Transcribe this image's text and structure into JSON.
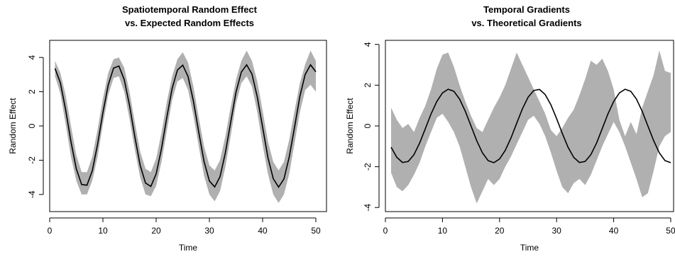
{
  "chart_data": [
    {
      "type": "line",
      "title_lines": [
        "Spatiotemporal Random Effect",
        "vs. Expected Random Effects"
      ],
      "xlabel": "Time",
      "ylabel": "Random Effect",
      "xlim": [
        0,
        52
      ],
      "ylim": [
        -5,
        5
      ],
      "xticks": [
        0,
        10,
        20,
        30,
        40,
        50
      ],
      "yticks": [
        -4,
        -2,
        0,
        2,
        4
      ],
      "series": [
        {
          "role": "expected",
          "color": "#000000",
          "x": [
            1,
            2,
            3,
            4,
            5,
            6,
            7,
            8,
            9,
            10,
            11,
            12,
            13,
            14,
            15,
            16,
            17,
            18,
            19,
            20,
            21,
            22,
            23,
            24,
            25,
            26,
            27,
            28,
            29,
            30,
            31,
            32,
            33,
            34,
            35,
            36,
            37,
            38,
            39,
            40,
            41,
            42,
            43,
            44,
            45,
            46,
            47,
            48,
            49,
            50
          ],
          "y": [
            3.36,
            2.53,
            0.94,
            -0.92,
            -2.5,
            -3.42,
            -3.46,
            -2.62,
            -1.07,
            0.78,
            2.4,
            3.38,
            3.5,
            2.71,
            1.2,
            -0.64,
            -2.3,
            -3.33,
            -3.53,
            -2.8,
            -1.33,
            0.5,
            2.19,
            3.27,
            3.55,
            2.88,
            1.45,
            -0.36,
            -2.08,
            -3.21,
            -3.56,
            -2.96,
            -1.57,
            0.22,
            1.97,
            3.15,
            3.57,
            3.03,
            1.69,
            -0.07,
            -1.85,
            -3.08,
            -3.57,
            -3.1,
            -1.81,
            -0.07,
            1.73,
            3.01,
            3.57,
            3.16
          ]
        },
        {
          "role": "credible-band",
          "color": "#b0b0b0",
          "x": [
            1,
            2,
            3,
            4,
            5,
            6,
            7,
            8,
            9,
            10,
            11,
            12,
            13,
            14,
            15,
            16,
            17,
            18,
            19,
            20,
            21,
            22,
            23,
            24,
            25,
            26,
            27,
            28,
            29,
            30,
            31,
            32,
            33,
            34,
            35,
            36,
            37,
            38,
            39,
            40,
            41,
            42,
            43,
            44,
            45,
            46,
            47,
            48,
            49,
            50
          ],
          "lower": [
            2.9,
            1.9,
            0.1,
            -1.8,
            -3.2,
            -4.0,
            -4.0,
            -3.2,
            -1.8,
            0.1,
            1.8,
            2.8,
            2.9,
            2.0,
            0.4,
            -1.4,
            -3.0,
            -4.0,
            -4.1,
            -3.5,
            -2.1,
            -0.3,
            1.5,
            2.6,
            2.8,
            2.1,
            0.6,
            -1.2,
            -2.9,
            -4.0,
            -4.4,
            -3.8,
            -2.4,
            -0.6,
            1.3,
            2.5,
            2.9,
            2.3,
            0.8,
            -1.1,
            -2.8,
            -4.0,
            -4.5,
            -4.0,
            -2.8,
            -1.0,
            0.8,
            2.1,
            2.4,
            2.0
          ],
          "upper": [
            3.8,
            3.1,
            1.8,
            0.0,
            -1.7,
            -2.7,
            -2.7,
            -1.8,
            -0.2,
            1.6,
            3.1,
            3.9,
            4.0,
            3.4,
            2.0,
            0.2,
            -1.5,
            -2.5,
            -2.7,
            -1.9,
            -0.4,
            1.4,
            2.9,
            3.9,
            4.3,
            3.7,
            2.3,
            0.5,
            -1.2,
            -2.3,
            -2.6,
            -2.0,
            -0.6,
            1.1,
            2.7,
            3.8,
            4.4,
            3.8,
            2.6,
            0.9,
            -0.9,
            -2.1,
            -2.6,
            -2.1,
            -0.8,
            0.9,
            2.5,
            3.6,
            4.4,
            3.8
          ]
        }
      ]
    },
    {
      "type": "line",
      "title_lines": [
        "Temporal Gradients",
        "vs. Theoretical Gradients"
      ],
      "xlabel": "Time",
      "ylabel": "Random Effect",
      "xlim": [
        0,
        50.5
      ],
      "ylim": [
        -4.2,
        4.2
      ],
      "xticks": [
        0,
        10,
        20,
        30,
        40,
        50
      ],
      "yticks": [
        -4,
        -2,
        0,
        2,
        4
      ],
      "series": [
        {
          "role": "theoretical",
          "color": "#000000",
          "x": [
            1,
            2,
            3,
            4,
            5,
            6,
            7,
            8,
            9,
            10,
            11,
            12,
            13,
            14,
            15,
            16,
            17,
            18,
            19,
            20,
            21,
            22,
            23,
            24,
            25,
            26,
            27,
            28,
            29,
            30,
            31,
            32,
            33,
            34,
            35,
            36,
            37,
            38,
            39,
            40,
            41,
            42,
            43,
            44,
            45,
            46,
            47,
            48,
            49,
            50
          ],
          "y": [
            -1.04,
            -1.54,
            -1.79,
            -1.74,
            -1.41,
            -0.84,
            -0.13,
            0.59,
            1.2,
            1.62,
            1.8,
            1.7,
            1.32,
            0.72,
            0.0,
            -0.72,
            -1.32,
            -1.7,
            -1.8,
            -1.62,
            -1.2,
            -0.59,
            0.13,
            0.84,
            1.41,
            1.74,
            1.79,
            1.54,
            1.04,
            0.36,
            -0.36,
            -1.04,
            -1.54,
            -1.79,
            -1.74,
            -1.41,
            -0.84,
            -0.13,
            0.59,
            1.2,
            1.62,
            1.8,
            1.7,
            1.32,
            0.72,
            0.0,
            -0.72,
            -1.32,
            -1.7,
            -1.8
          ]
        },
        {
          "role": "credible-band",
          "color": "#b0b0b0",
          "x": [
            1,
            2,
            3,
            4,
            5,
            6,
            7,
            8,
            9,
            10,
            11,
            12,
            13,
            14,
            15,
            16,
            17,
            18,
            19,
            20,
            21,
            22,
            23,
            24,
            25,
            26,
            27,
            28,
            29,
            30,
            31,
            32,
            33,
            34,
            35,
            36,
            37,
            38,
            39,
            40,
            41,
            42,
            43,
            44,
            45,
            46,
            47,
            48,
            49,
            50
          ],
          "lower": [
            -2.3,
            -3.0,
            -3.2,
            -2.9,
            -2.4,
            -1.8,
            -1.0,
            -0.3,
            0.4,
            0.6,
            0.2,
            -0.3,
            -1.0,
            -2.0,
            -3.0,
            -3.8,
            -3.2,
            -2.6,
            -2.9,
            -2.6,
            -2.0,
            -1.5,
            -0.9,
            -0.3,
            0.3,
            0.5,
            0.1,
            -0.5,
            -1.3,
            -2.2,
            -3.0,
            -3.3,
            -2.8,
            -2.6,
            -2.9,
            -2.4,
            -1.7,
            -1.0,
            -0.4,
            0.2,
            -0.3,
            -1.0,
            -1.8,
            -2.6,
            -3.5,
            -3.3,
            -2.2,
            -1.0,
            -0.5,
            -0.3
          ],
          "upper": [
            0.9,
            0.3,
            -0.1,
            0.1,
            -0.3,
            0.4,
            1.0,
            1.8,
            2.8,
            3.5,
            3.6,
            2.9,
            2.0,
            1.2,
            0.5,
            -0.1,
            -0.3,
            0.3,
            0.9,
            1.4,
            2.0,
            2.8,
            3.6,
            3.0,
            2.4,
            1.8,
            1.2,
            0.6,
            -0.2,
            -0.5,
            -0.1,
            0.4,
            0.8,
            1.5,
            2.3,
            3.2,
            3.0,
            3.3,
            2.7,
            1.8,
            0.3,
            -0.5,
            0.2,
            -0.4,
            0.9,
            1.7,
            2.5,
            3.7,
            2.7,
            2.6
          ]
        }
      ]
    }
  ]
}
